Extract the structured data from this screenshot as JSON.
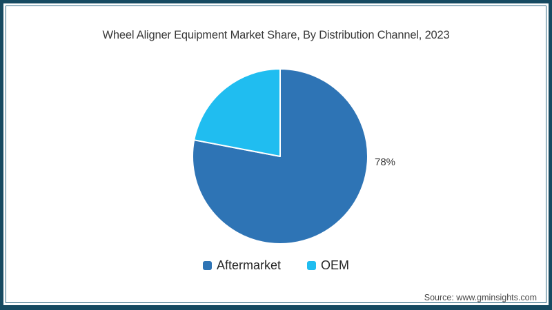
{
  "chart_data": {
    "type": "pie",
    "title": "Wheel Aligner Equipment Market Share, By Distribution Channel, 2023",
    "slices": [
      {
        "label": "Aftermarket",
        "value": 78,
        "value_label": "78%",
        "color": "#2e74b5"
      },
      {
        "label": "OEM",
        "value": 22,
        "value_label": "",
        "color": "#20bdf0"
      }
    ],
    "start_angle": "12-oclock",
    "direction": "clockwise",
    "slice_separator_color": "#ffffff",
    "legend_position": "bottom",
    "visible_value_labels": [
      "78%"
    ]
  },
  "footer": {
    "source": "Source: www.gminsights.com"
  },
  "colors": {
    "frame_border": "#164a61",
    "inner_border": "#2b6580",
    "background": "#ffffff",
    "title_text": "#3a3a3a",
    "percent_label_text": "#3a3a3a",
    "legend_text": "#252525",
    "source_text": "#4a4a4a"
  }
}
